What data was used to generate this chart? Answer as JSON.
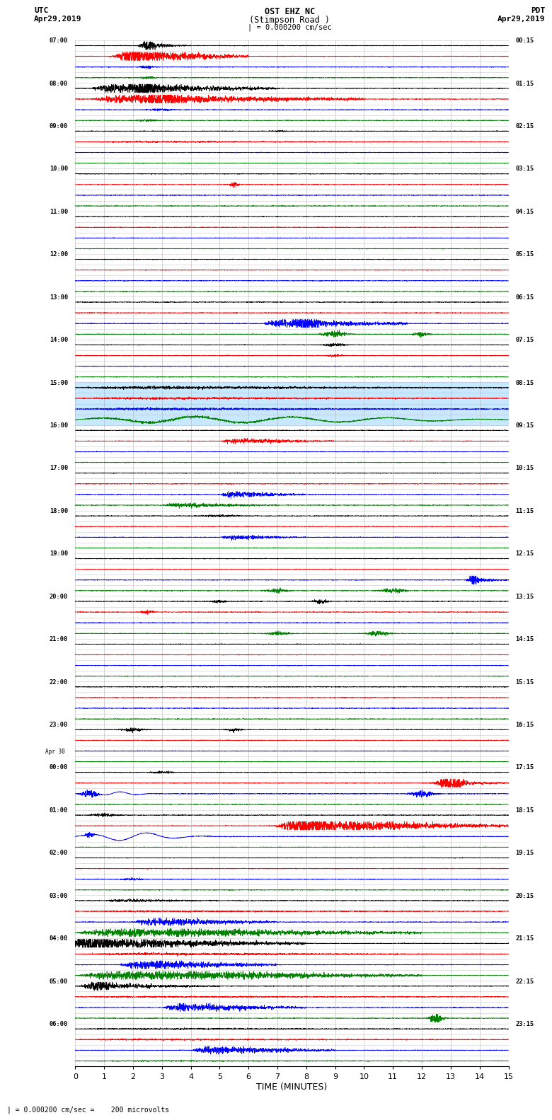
{
  "title_line1": "OST EHZ NC",
  "title_line2": "(Stimpson Road )",
  "title_line3": "| = 0.000200 cm/sec",
  "label_utc": "UTC",
  "label_pdt": "PDT",
  "label_date_left": "Apr29,2019",
  "label_date_right": "Apr29,2019",
  "xlabel": "TIME (MINUTES)",
  "footnote": "= 0.000200 cm/sec =    200 microvolts",
  "utc_labels": [
    "07:00",
    "08:00",
    "09:00",
    "10:00",
    "11:00",
    "12:00",
    "13:00",
    "14:00",
    "15:00",
    "16:00",
    "17:00",
    "18:00",
    "19:00",
    "20:00",
    "21:00",
    "22:00",
    "23:00",
    "Apr 30",
    "00:00",
    "01:00",
    "02:00",
    "03:00",
    "04:00",
    "05:00",
    "06:00"
  ],
  "utc_row_indices": [
    0,
    4,
    8,
    12,
    16,
    20,
    24,
    28,
    32,
    36,
    40,
    44,
    48,
    52,
    56,
    60,
    64,
    67,
    68,
    72,
    76,
    80,
    84,
    88,
    92
  ],
  "pdt_labels": [
    "00:15",
    "01:15",
    "02:15",
    "03:15",
    "04:15",
    "05:15",
    "06:15",
    "07:15",
    "08:15",
    "09:15",
    "10:15",
    "11:15",
    "12:15",
    "13:15",
    "14:15",
    "15:15",
    "16:15",
    "17:15",
    "18:15",
    "19:15",
    "20:15",
    "21:15",
    "22:15",
    "23:15"
  ],
  "pdt_row_indices": [
    0,
    4,
    8,
    12,
    16,
    20,
    24,
    28,
    32,
    36,
    40,
    44,
    48,
    52,
    56,
    60,
    64,
    68,
    72,
    76,
    80,
    84,
    88,
    92
  ],
  "n_rows": 96,
  "n_cols": 3000,
  "xlim": [
    0,
    15
  ],
  "xticks": [
    0,
    1,
    2,
    3,
    4,
    5,
    6,
    7,
    8,
    9,
    10,
    11,
    12,
    13,
    14,
    15
  ],
  "colors_cycle": [
    "black",
    "red",
    "blue",
    "green"
  ],
  "bg_color": "#ffffff",
  "grid_color": "#aaaaaa",
  "line_width": 0.5,
  "highlight_rows": [
    32,
    33,
    34,
    35
  ],
  "highlight_color": "#c8e8ff"
}
